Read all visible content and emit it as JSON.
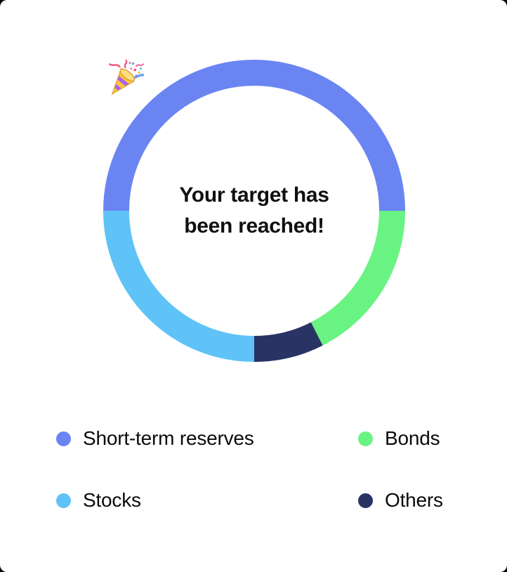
{
  "page": {
    "background_color": "#000000",
    "card_background_color": "#ffffff",
    "text_color": "#101010"
  },
  "center": {
    "emoji": "party-popper",
    "message_lines": [
      "Your target has",
      "been reached!"
    ]
  },
  "chart_data": {
    "type": "pie",
    "variant": "donut",
    "title": "",
    "center_text": "Your target has been reached!",
    "categories": [
      "Short-term reserves",
      "Bonds",
      "Others",
      "Stocks"
    ],
    "values": [
      50,
      17.5,
      7.5,
      25
    ],
    "unit": "% (estimated from arc angles, no labels shown)",
    "segments": [
      {
        "label": "Short-term reserves",
        "value": 50,
        "color": "#6a85f2"
      },
      {
        "label": "Bonds",
        "value": 17.5,
        "color": "#69f383"
      },
      {
        "label": "Others",
        "value": 7.5,
        "color": "#293364"
      },
      {
        "label": "Stocks",
        "value": 25,
        "color": "#5fc3f7"
      }
    ],
    "start_angle_deg": 180,
    "direction": "clockwise",
    "ring_thickness_px": 37,
    "legend_position": "bottom"
  },
  "legend": {
    "items": [
      {
        "label": "Short-term reserves",
        "color": "#6a85f2"
      },
      {
        "label": "Bonds",
        "color": "#69f383"
      },
      {
        "label": "Stocks",
        "color": "#5fc3f7"
      },
      {
        "label": "Others",
        "color": "#293364"
      }
    ]
  }
}
